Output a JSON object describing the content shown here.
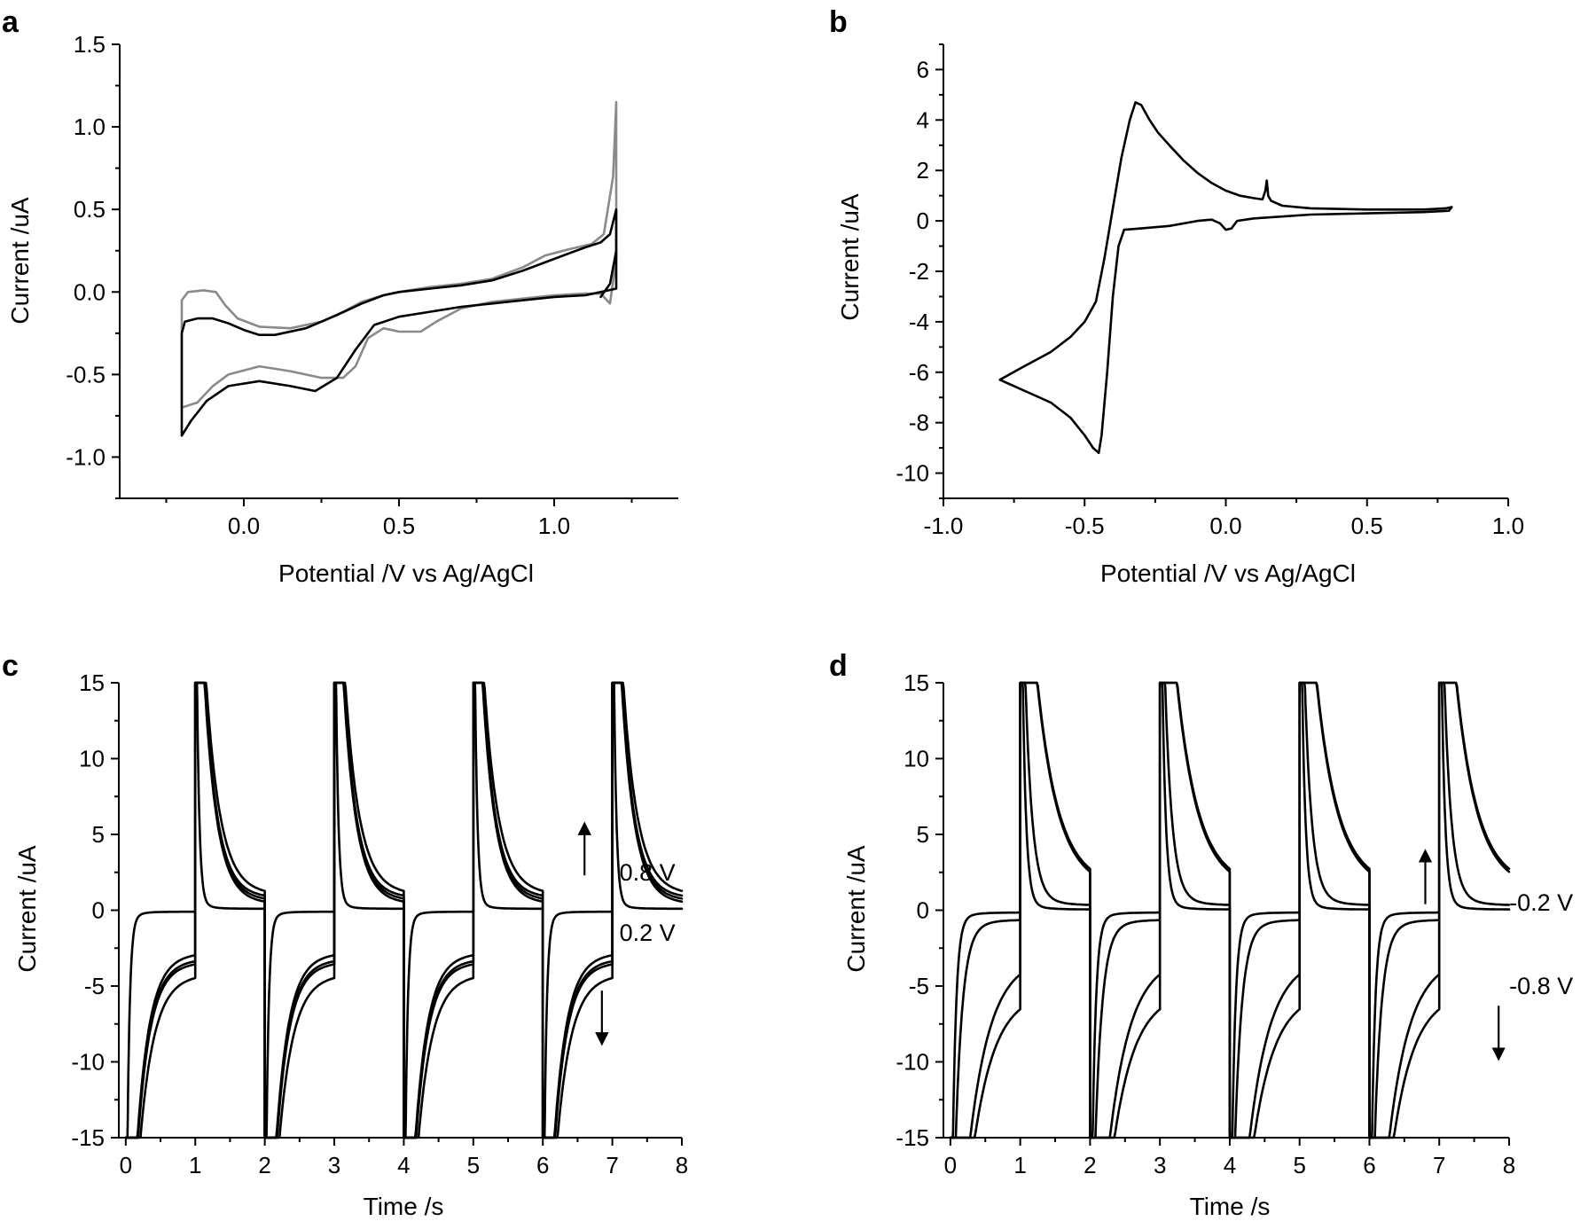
{
  "chart_data": [
    {
      "id": "a",
      "type": "line",
      "panel_label": "a",
      "xlabel": "Potential /V vs Ag/AgCl",
      "ylabel": "Current /uA",
      "xlim": [
        -0.4,
        1.4
      ],
      "ylim": [
        -1.25,
        1.5
      ],
      "xticks": [
        0.0,
        0.5,
        1.0
      ],
      "xtick_labels": [
        "0.0",
        "0.5",
        "1.0"
      ],
      "yticks": [
        -1.0,
        -0.5,
        0.0,
        0.5,
        1.0,
        1.5
      ],
      "ytick_labels": [
        "-1.0",
        "-0.5",
        "0.0",
        "0.5",
        "1.0",
        "1.5"
      ],
      "series": [
        {
          "name": "cv-gray",
          "color": "#8a8a8a",
          "points": [
            [
              -0.2,
              -0.7
            ],
            [
              -0.2,
              -0.05
            ],
            [
              -0.18,
              0.0
            ],
            [
              -0.13,
              0.01
            ],
            [
              -0.09,
              0.0
            ],
            [
              -0.06,
              -0.08
            ],
            [
              -0.02,
              -0.16
            ],
            [
              0.05,
              -0.21
            ],
            [
              0.15,
              -0.22
            ],
            [
              0.25,
              -0.18
            ],
            [
              0.32,
              -0.12
            ],
            [
              0.38,
              -0.06
            ],
            [
              0.45,
              -0.02
            ],
            [
              0.5,
              0.0
            ],
            [
              0.6,
              0.03
            ],
            [
              0.7,
              0.05
            ],
            [
              0.8,
              0.08
            ],
            [
              0.9,
              0.15
            ],
            [
              0.97,
              0.22
            ],
            [
              1.05,
              0.26
            ],
            [
              1.12,
              0.29
            ],
            [
              1.16,
              0.35
            ],
            [
              1.19,
              0.7
            ],
            [
              1.2,
              1.15
            ],
            [
              1.2,
              0.2
            ],
            [
              1.18,
              -0.07
            ],
            [
              1.15,
              -0.01
            ],
            [
              1.1,
              -0.01
            ],
            [
              1.0,
              -0.02
            ],
            [
              0.9,
              -0.04
            ],
            [
              0.8,
              -0.06
            ],
            [
              0.7,
              -0.1
            ],
            [
              0.62,
              -0.18
            ],
            [
              0.57,
              -0.24
            ],
            [
              0.5,
              -0.24
            ],
            [
              0.45,
              -0.22
            ],
            [
              0.4,
              -0.28
            ],
            [
              0.36,
              -0.45
            ],
            [
              0.32,
              -0.52
            ],
            [
              0.25,
              -0.52
            ],
            [
              0.15,
              -0.48
            ],
            [
              0.05,
              -0.45
            ],
            [
              -0.05,
              -0.5
            ],
            [
              -0.1,
              -0.57
            ],
            [
              -0.15,
              -0.67
            ],
            [
              -0.2,
              -0.7
            ]
          ]
        },
        {
          "name": "cv-black",
          "color": "#000000",
          "points": [
            [
              -0.2,
              -0.87
            ],
            [
              -0.2,
              -0.25
            ],
            [
              -0.19,
              -0.18
            ],
            [
              -0.15,
              -0.16
            ],
            [
              -0.1,
              -0.16
            ],
            [
              -0.05,
              -0.19
            ],
            [
              0.0,
              -0.23
            ],
            [
              0.05,
              -0.26
            ],
            [
              0.1,
              -0.26
            ],
            [
              0.2,
              -0.22
            ],
            [
              0.3,
              -0.14
            ],
            [
              0.38,
              -0.07
            ],
            [
              0.45,
              -0.02
            ],
            [
              0.5,
              0.0
            ],
            [
              0.6,
              0.02
            ],
            [
              0.7,
              0.04
            ],
            [
              0.8,
              0.07
            ],
            [
              0.9,
              0.13
            ],
            [
              1.0,
              0.2
            ],
            [
              1.1,
              0.27
            ],
            [
              1.15,
              0.3
            ],
            [
              1.18,
              0.35
            ],
            [
              1.2,
              0.5
            ],
            [
              1.2,
              0.02
            ],
            [
              1.15,
              0.0
            ],
            [
              1.1,
              -0.02
            ],
            [
              1.0,
              -0.03
            ],
            [
              0.9,
              -0.05
            ],
            [
              0.8,
              -0.07
            ],
            [
              0.7,
              -0.09
            ],
            [
              0.6,
              -0.12
            ],
            [
              0.5,
              -0.15
            ],
            [
              0.42,
              -0.2
            ],
            [
              0.36,
              -0.35
            ],
            [
              0.3,
              -0.52
            ],
            [
              0.23,
              -0.6
            ],
            [
              0.15,
              -0.57
            ],
            [
              0.05,
              -0.54
            ],
            [
              -0.05,
              -0.57
            ],
            [
              -0.12,
              -0.66
            ],
            [
              -0.17,
              -0.78
            ],
            [
              -0.2,
              -0.87
            ]
          ]
        },
        {
          "name": "cv-black-tail",
          "color": "#000000",
          "points": [
            [
              1.15,
              -0.03
            ],
            [
              1.18,
              0.05
            ],
            [
              1.2,
              0.25
            ]
          ]
        }
      ]
    },
    {
      "id": "b",
      "type": "line",
      "panel_label": "b",
      "xlabel": "Potential /V vs Ag/AgCl",
      "ylabel": "Current /uA",
      "xlim": [
        -1.0,
        1.0
      ],
      "ylim": [
        -11,
        7
      ],
      "xticks": [
        -1.0,
        -0.5,
        0.0,
        0.5,
        1.0
      ],
      "xtick_labels": [
        "-1.0",
        "-0.5",
        "0.0",
        "0.5",
        "1.0"
      ],
      "yticks": [
        -10,
        -8,
        -6,
        -4,
        -2,
        0,
        2,
        4,
        6
      ],
      "ytick_labels": [
        "-10",
        "-8",
        "-6",
        "-4",
        "-2",
        "0",
        "2",
        "4",
        "6"
      ],
      "series": [
        {
          "name": "cv",
          "color": "#000000",
          "points": [
            [
              -0.8,
              -6.3
            ],
            [
              -0.72,
              -5.8
            ],
            [
              -0.62,
              -5.2
            ],
            [
              -0.55,
              -4.6
            ],
            [
              -0.5,
              -4.0
            ],
            [
              -0.46,
              -3.2
            ],
            [
              -0.43,
              -1.5
            ],
            [
              -0.4,
              0.5
            ],
            [
              -0.37,
              2.5
            ],
            [
              -0.34,
              4.0
            ],
            [
              -0.32,
              4.7
            ],
            [
              -0.3,
              4.6
            ],
            [
              -0.27,
              4.0
            ],
            [
              -0.24,
              3.5
            ],
            [
              -0.2,
              3.0
            ],
            [
              -0.15,
              2.4
            ],
            [
              -0.1,
              1.9
            ],
            [
              -0.05,
              1.5
            ],
            [
              0.0,
              1.2
            ],
            [
              0.05,
              1.0
            ],
            [
              0.1,
              0.9
            ],
            [
              0.13,
              0.85
            ],
            [
              0.14,
              1.2
            ],
            [
              0.145,
              1.6
            ],
            [
              0.15,
              1.0
            ],
            [
              0.16,
              0.8
            ],
            [
              0.2,
              0.6
            ],
            [
              0.3,
              0.5
            ],
            [
              0.5,
              0.45
            ],
            [
              0.7,
              0.45
            ],
            [
              0.78,
              0.5
            ],
            [
              0.8,
              0.55
            ],
            [
              0.79,
              0.4
            ],
            [
              0.7,
              0.35
            ],
            [
              0.5,
              0.3
            ],
            [
              0.3,
              0.25
            ],
            [
              0.1,
              0.1
            ],
            [
              0.04,
              0.0
            ],
            [
              0.02,
              -0.3
            ],
            [
              0.0,
              -0.35
            ],
            [
              -0.02,
              -0.1
            ],
            [
              -0.05,
              0.05
            ],
            [
              -0.1,
              0.0
            ],
            [
              -0.2,
              -0.2
            ],
            [
              -0.3,
              -0.3
            ],
            [
              -0.36,
              -0.35
            ],
            [
              -0.38,
              -1.0
            ],
            [
              -0.4,
              -3.0
            ],
            [
              -0.42,
              -6.0
            ],
            [
              -0.44,
              -8.5
            ],
            [
              -0.45,
              -9.2
            ],
            [
              -0.47,
              -9.0
            ],
            [
              -0.5,
              -8.5
            ],
            [
              -0.55,
              -7.8
            ],
            [
              -0.62,
              -7.2
            ],
            [
              -0.7,
              -6.8
            ],
            [
              -0.76,
              -6.5
            ],
            [
              -0.8,
              -6.3
            ]
          ]
        }
      ]
    },
    {
      "id": "c",
      "type": "line",
      "panel_label": "c",
      "xlabel": "Time /s",
      "ylabel": "Current /uA",
      "xlim": [
        -0.1,
        8
      ],
      "ylim": [
        -15,
        15
      ],
      "xticks": [
        0,
        1,
        2,
        3,
        4,
        5,
        6,
        7,
        8
      ],
      "xtick_labels": [
        "0",
        "1",
        "2",
        "3",
        "4",
        "5",
        "6",
        "7",
        "8"
      ],
      "yticks": [
        -15,
        -10,
        -5,
        0,
        5,
        10,
        15
      ],
      "ytick_labels": [
        "-15",
        "-10",
        "-5",
        "0",
        "5",
        "10",
        "15"
      ],
      "step_response": {
        "period": 2,
        "cycles": 4,
        "traces": [
          {
            "plateau_pos": 0.1,
            "plateau_neg": -0.1,
            "tau": 0.035
          },
          {
            "plateau_pos": 0.3,
            "plateau_neg": -2.7,
            "tau": 0.18
          },
          {
            "plateau_pos": 0.5,
            "plateau_neg": -3.1,
            "tau": 0.18
          },
          {
            "plateau_pos": 0.7,
            "plateau_neg": -3.3,
            "tau": 0.18
          },
          {
            "plateau_pos": 0.9,
            "plateau_neg": -4.1,
            "tau": 0.2
          }
        ]
      },
      "annotations": [
        {
          "text": "0.8 V",
          "x": 7.0,
          "y": 2.5
        },
        {
          "text": "0.2 V",
          "x": 7.0,
          "y": -1.5
        }
      ],
      "arrows": [
        {
          "direction": "up",
          "x": 6.6,
          "y_from": 2.3,
          "y_to": 5.4
        },
        {
          "direction": "down",
          "x": 6.85,
          "y_from": -5.3,
          "y_to": -8.5
        }
      ]
    },
    {
      "id": "d",
      "type": "line",
      "panel_label": "d",
      "xlabel": "Time /s",
      "ylabel": "Current /uA",
      "xlim": [
        -0.1,
        8
      ],
      "ylim": [
        -15,
        15
      ],
      "xticks": [
        0,
        1,
        2,
        3,
        4,
        5,
        6,
        7,
        8
      ],
      "xtick_labels": [
        "0",
        "1",
        "2",
        "3",
        "4",
        "5",
        "6",
        "7",
        "8"
      ],
      "yticks": [
        -15,
        -10,
        -5,
        0,
        5,
        10,
        15
      ],
      "ytick_labels": [
        "-15",
        "-10",
        "-5",
        "0",
        "5",
        "10",
        "15"
      ],
      "step_response": {
        "period": 2,
        "cycles": 4,
        "traces": [
          {
            "plateau_pos": 0.05,
            "plateau_neg": -0.15,
            "tau": 0.05
          },
          {
            "plateau_pos": 0.3,
            "plateau_neg": -0.6,
            "tau": 0.1
          },
          {
            "plateau_pos": 1.2,
            "plateau_neg": -2.9,
            "tau": 0.3
          },
          {
            "plateau_pos": 1.4,
            "plateau_neg": -5.2,
            "tau": 0.3
          }
        ]
      },
      "annotations": [
        {
          "text": "-0.2 V",
          "x": 7.9,
          "y": 0.5
        },
        {
          "text": "-0.8 V",
          "x": 7.9,
          "y": -5.0
        }
      ],
      "arrows": [
        {
          "direction": "up",
          "x": 6.8,
          "y_from": 0.4,
          "y_to": 3.6
        },
        {
          "direction": "down",
          "x": 7.85,
          "y_from": -6.3,
          "y_to": -9.5
        }
      ]
    }
  ]
}
